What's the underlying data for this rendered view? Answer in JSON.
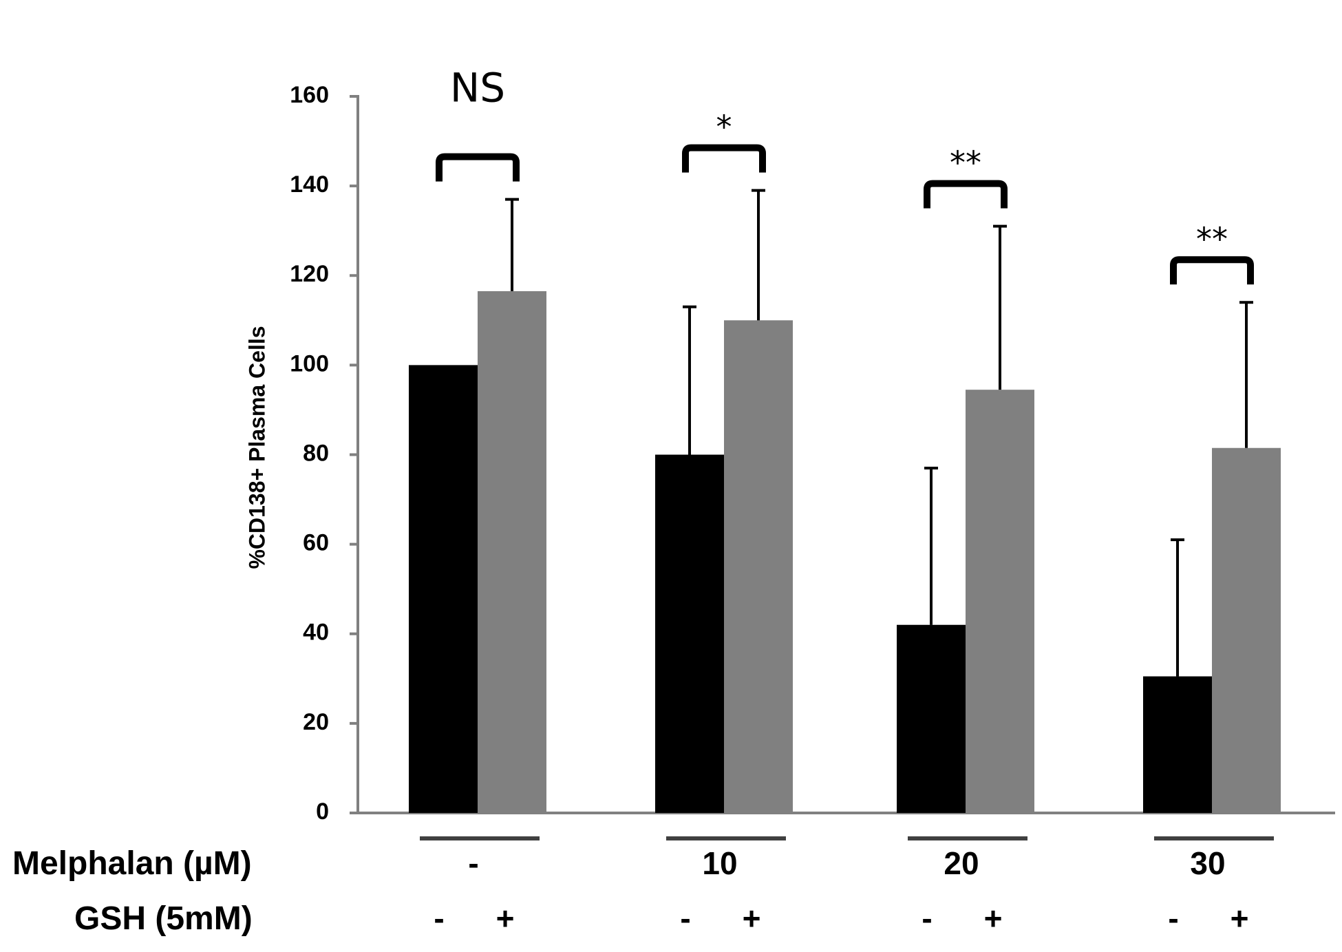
{
  "chart_data": {
    "type": "bar",
    "title": "",
    "xlabel": "",
    "ylabel": "%CD138+ Plasma Cells",
    "ylim": [
      0,
      160
    ],
    "yticks": [
      0,
      20,
      40,
      60,
      80,
      100,
      120,
      140,
      160
    ],
    "grid": false,
    "colors": {
      "minus_gsh": "#000000",
      "plus_gsh": "#808080",
      "axis": "#808080",
      "group_line": "#404040"
    },
    "row_labels": {
      "melphalan": "Melphalan (µM)",
      "gsh": "GSH (5mM)"
    },
    "groups": [
      {
        "melphalan": "-",
        "gsh_labels": [
          "-",
          "+"
        ],
        "values": [
          100,
          116.5
        ],
        "errors_upper": [
          100,
          137
        ],
        "significance": "NS"
      },
      {
        "melphalan": "10",
        "gsh_labels": [
          "-",
          "+"
        ],
        "values": [
          80,
          110
        ],
        "errors_upper": [
          113,
          139
        ],
        "significance": "*"
      },
      {
        "melphalan": "20",
        "gsh_labels": [
          "-",
          "+"
        ],
        "values": [
          42,
          94.5
        ],
        "errors_upper": [
          77,
          131
        ],
        "significance": "**"
      },
      {
        "melphalan": "30",
        "gsh_labels": [
          "-",
          "+"
        ],
        "values": [
          30.5,
          81.5
        ],
        "errors_upper": [
          61,
          114
        ],
        "significance": "**"
      }
    ]
  }
}
